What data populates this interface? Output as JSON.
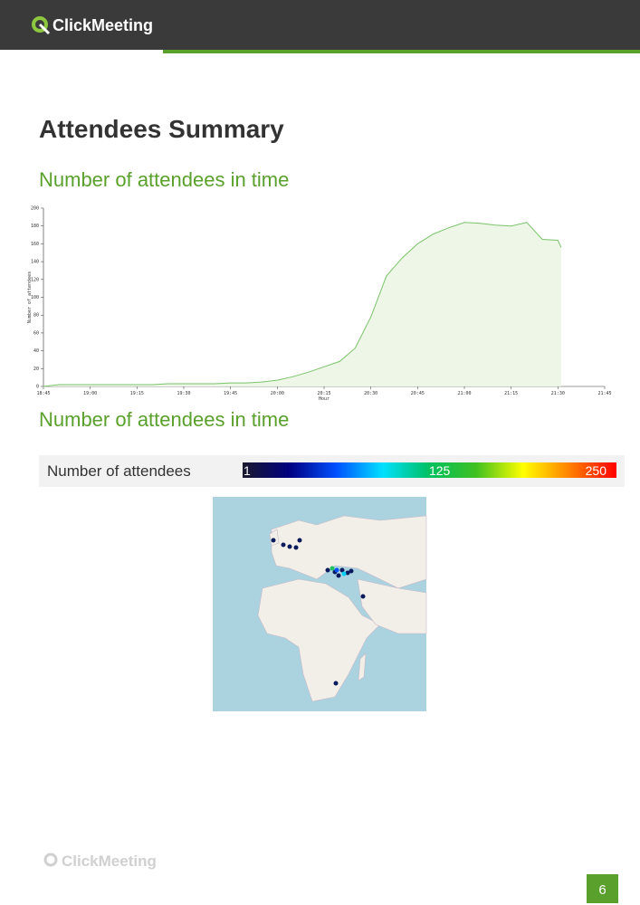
{
  "header": {
    "logo": "ClickMeeting"
  },
  "title": "Attendees Summary",
  "sections": [
    {
      "heading": "Number of attendees in time"
    },
    {
      "heading": "Number of attendees in time"
    }
  ],
  "chart_data": {
    "type": "area",
    "x_label": "Hour",
    "y_label": "Number of attendees",
    "x": [
      "18:45",
      "18:50",
      "18:55",
      "19:00",
      "19:05",
      "19:10",
      "19:15",
      "19:20",
      "19:25",
      "19:30",
      "19:35",
      "19:40",
      "19:45",
      "19:50",
      "19:55",
      "20:00",
      "20:05",
      "20:10",
      "20:15",
      "20:20",
      "20:25",
      "20:30",
      "20:35",
      "20:40",
      "20:45",
      "20:50",
      "20:55",
      "21:00",
      "21:05",
      "21:10",
      "21:15",
      "21:20",
      "21:25",
      "21:30",
      "21:31"
    ],
    "values": [
      0,
      2,
      2,
      2,
      2,
      2,
      2,
      2,
      3,
      3,
      3,
      3,
      4,
      4,
      5,
      7,
      11,
      16,
      22,
      28,
      43,
      78,
      124,
      144,
      160,
      171,
      178,
      184,
      183,
      181,
      180,
      184,
      165,
      164,
      156
    ],
    "color": "#7ac36a",
    "fill": "#eef6e8",
    "xlim": [
      "18:45",
      "21:45"
    ],
    "xticks": [
      "18:45",
      "19:00",
      "19:15",
      "19:30",
      "19:45",
      "20:00",
      "20:15",
      "20:30",
      "20:45",
      "21:00",
      "21:15",
      "21:30",
      "21:45"
    ],
    "ylim": [
      0,
      200
    ],
    "yticks": [
      0,
      20,
      40,
      60,
      80,
      100,
      120,
      140,
      160,
      180,
      200
    ]
  },
  "colorbar": {
    "label": "Number of attendees",
    "range": [
      1,
      250
    ],
    "ticks": [
      1,
      125,
      250
    ],
    "colors": [
      "#1a1a2e",
      "#000080",
      "#0050ff",
      "#00e0ff",
      "#00c060",
      "#40c020",
      "#ffff00",
      "#ff8000",
      "#ff0000"
    ]
  },
  "footer": {
    "logo": "ClickMeeting",
    "page": 6
  }
}
